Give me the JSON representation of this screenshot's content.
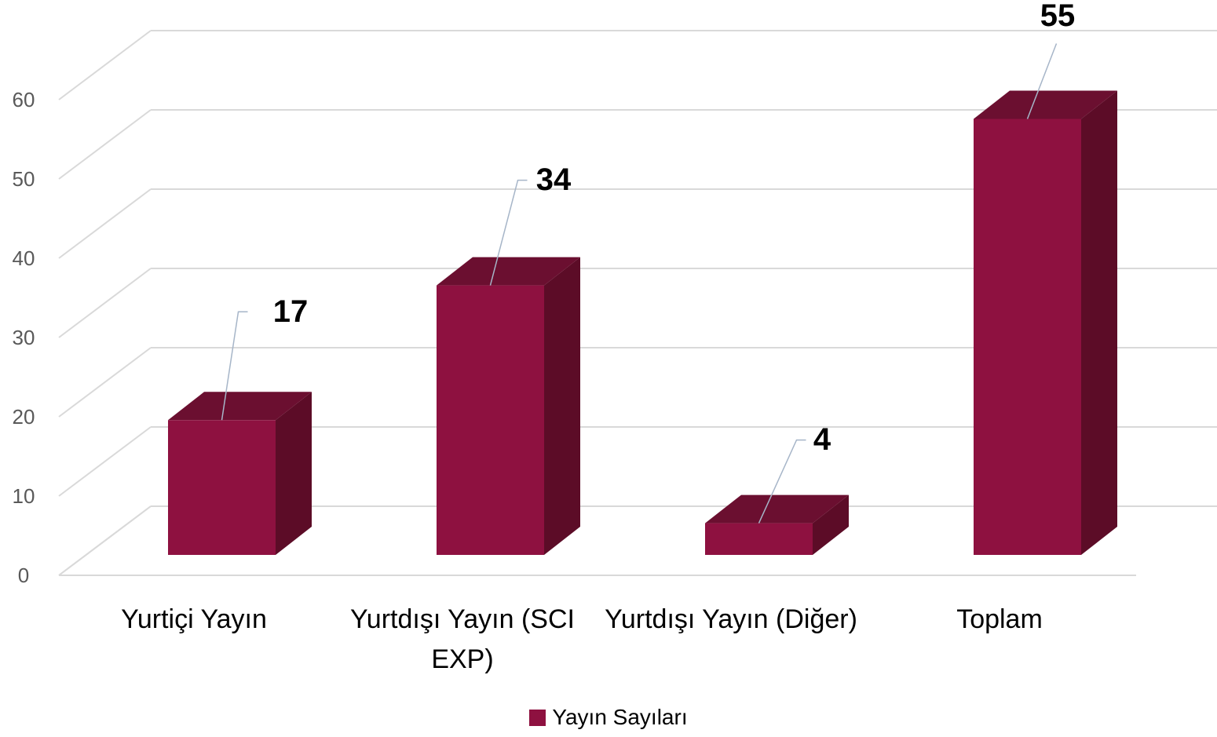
{
  "chart_data": {
    "type": "bar3d",
    "categories": [
      "Yurtiçi Yayın",
      "Yurtdışı Yayın (SCI EXP)",
      "Yurtdışı Yayın (Diğer)",
      "Toplam"
    ],
    "series": [
      {
        "name": "Yayın Sayıları",
        "color": "#8e1140",
        "values": [
          17,
          34,
          4,
          55
        ]
      }
    ],
    "ylim": [
      0,
      60
    ],
    "yticks": [
      0,
      10,
      20,
      30,
      40,
      50,
      60
    ],
    "grid": true,
    "legend": "bottom"
  }
}
